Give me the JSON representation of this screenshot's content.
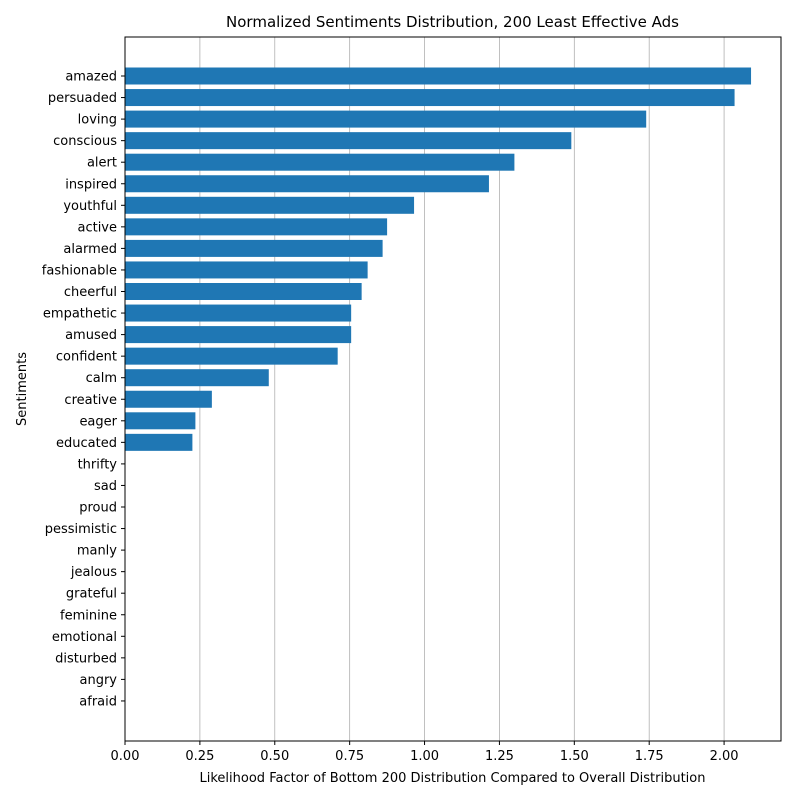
{
  "chart_data": {
    "type": "bar",
    "orientation": "horizontal",
    "title": "Normalized Sentiments Distribution, 200 Least Effective Ads",
    "xlabel": "Likelihood Factor of Bottom 200 Distribution Compared to Overall Distribution",
    "ylabel": "Sentiments",
    "xlim": [
      0,
      2.19
    ],
    "xticks": [
      "0.00",
      "0.25",
      "0.50",
      "0.75",
      "1.00",
      "1.25",
      "1.50",
      "1.75",
      "2.00"
    ],
    "grid": "vertical",
    "categories": [
      "amazed",
      "persuaded",
      "loving",
      "conscious",
      "alert",
      "inspired",
      "youthful",
      "active",
      "alarmed",
      "fashionable",
      "cheerful",
      "empathetic",
      "amused",
      "confident",
      "calm",
      "creative",
      "eager",
      "educated",
      "thrifty",
      "sad",
      "proud",
      "pessimistic",
      "manly",
      "jealous",
      "grateful",
      "feminine",
      "emotional",
      "disturbed",
      "angry",
      "afraid"
    ],
    "values": [
      2.09,
      2.035,
      1.74,
      1.49,
      1.3,
      1.215,
      0.965,
      0.875,
      0.86,
      0.81,
      0.79,
      0.755,
      0.755,
      0.71,
      0.48,
      0.29,
      0.235,
      0.225,
      0,
      0,
      0,
      0,
      0,
      0,
      0,
      0,
      0,
      0,
      0,
      0
    ],
    "color": "#1f77b4"
  }
}
